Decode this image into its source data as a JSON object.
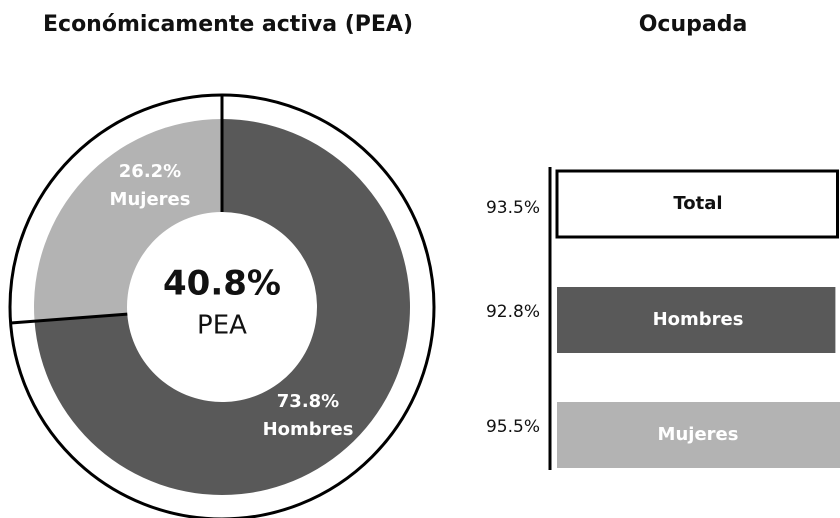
{
  "chart_data": [
    {
      "type": "donut",
      "title": "Económicamente activa (PEA)",
      "categories": [
        "Hombres",
        "Mujeres"
      ],
      "values": [
        73.8,
        26.2
      ],
      "value_labels": [
        "73.8%",
        "26.2%"
      ],
      "colors": [
        "#595959",
        "#b3b3b3"
      ],
      "center_value": 40.8,
      "center_value_label": "40.8%",
      "center_text": "PEA"
    },
    {
      "type": "bar",
      "title": "Ocupada",
      "orientation": "horizontal",
      "categories": [
        "Total",
        "Hombres",
        "Mujeres"
      ],
      "values": [
        93.5,
        92.8,
        95.5
      ],
      "value_labels": [
        "93.5%",
        "92.8%",
        "95.5%"
      ],
      "colors": [
        "#ffffff",
        "#595959",
        "#b3b3b3"
      ],
      "xlim": [
        0,
        100
      ]
    }
  ]
}
